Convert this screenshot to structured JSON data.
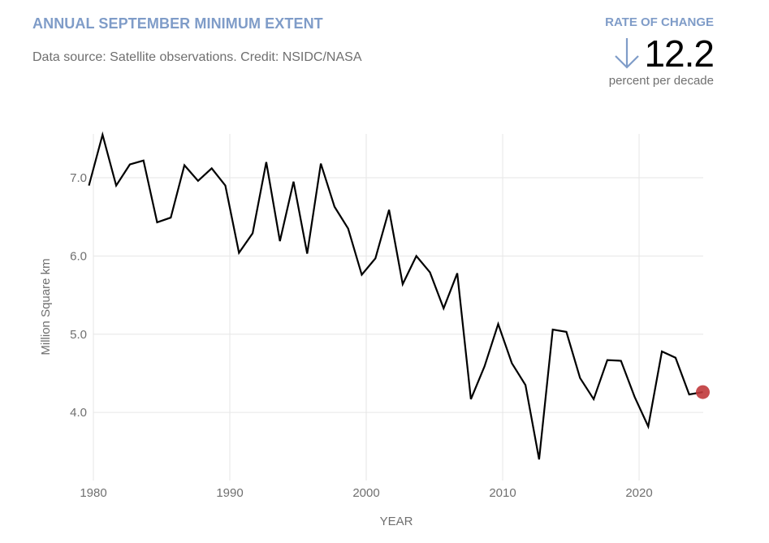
{
  "header": {
    "title": "ANNUAL SEPTEMBER MINIMUM EXTENT",
    "subtitle": "Data source: Satellite observations. Credit: NSIDC/NASA"
  },
  "rate_of_change": {
    "label": "RATE OF CHANGE",
    "direction_icon": "arrow-down-icon",
    "value": "12.2",
    "unit": "percent per decade"
  },
  "colors": {
    "accent": "#7f9cc8",
    "line": "#000000",
    "highlight": "#c0393b",
    "grid": "#e6e6e6"
  },
  "chart_data": {
    "type": "line",
    "title": "ANNUAL SEPTEMBER MINIMUM EXTENT",
    "xlabel": "YEAR",
    "ylabel": "Million Square km",
    "xlim": [
      1980,
      2024.7
    ],
    "ylim": [
      3.13,
      7.56
    ],
    "x_ticks": [
      1980,
      1990,
      2000,
      2010,
      2020
    ],
    "x_tick_labels": [
      "1980",
      "1990",
      "2000",
      "2010",
      "2020"
    ],
    "y_ticks": [
      4.0,
      5.0,
      6.0,
      7.0
    ],
    "y_tick_labels": [
      "4.0",
      "5.0",
      "6.0",
      "7.0"
    ],
    "grid": true,
    "legend": "none",
    "x_offset_note": "values plotted at September of each year",
    "series": [
      {
        "name": "September minimum extent",
        "x": [
          1979,
          1980,
          1981,
          1982,
          1983,
          1984,
          1985,
          1986,
          1987,
          1988,
          1989,
          1990,
          1991,
          1992,
          1993,
          1994,
          1995,
          1996,
          1997,
          1998,
          1999,
          2000,
          2001,
          2002,
          2003,
          2004,
          2005,
          2006,
          2007,
          2008,
          2009,
          2010,
          2011,
          2012,
          2013,
          2014,
          2015,
          2016,
          2017,
          2018,
          2019,
          2020,
          2021,
          2022,
          2023,
          2024
        ],
        "values": [
          6.9,
          7.55,
          6.9,
          7.17,
          7.22,
          6.43,
          6.49,
          7.16,
          6.96,
          7.12,
          6.9,
          6.04,
          6.29,
          7.2,
          6.19,
          6.95,
          6.03,
          7.18,
          6.63,
          6.35,
          5.76,
          5.97,
          6.59,
          5.64,
          6.0,
          5.79,
          5.33,
          5.78,
          4.17,
          4.59,
          5.13,
          4.63,
          4.35,
          3.4,
          5.06,
          5.03,
          4.44,
          4.17,
          4.67,
          4.66,
          4.2,
          3.82,
          4.78,
          4.7,
          4.23,
          4.26
        ]
      }
    ],
    "highlight_point": {
      "x": 2024,
      "value": 4.26
    }
  }
}
